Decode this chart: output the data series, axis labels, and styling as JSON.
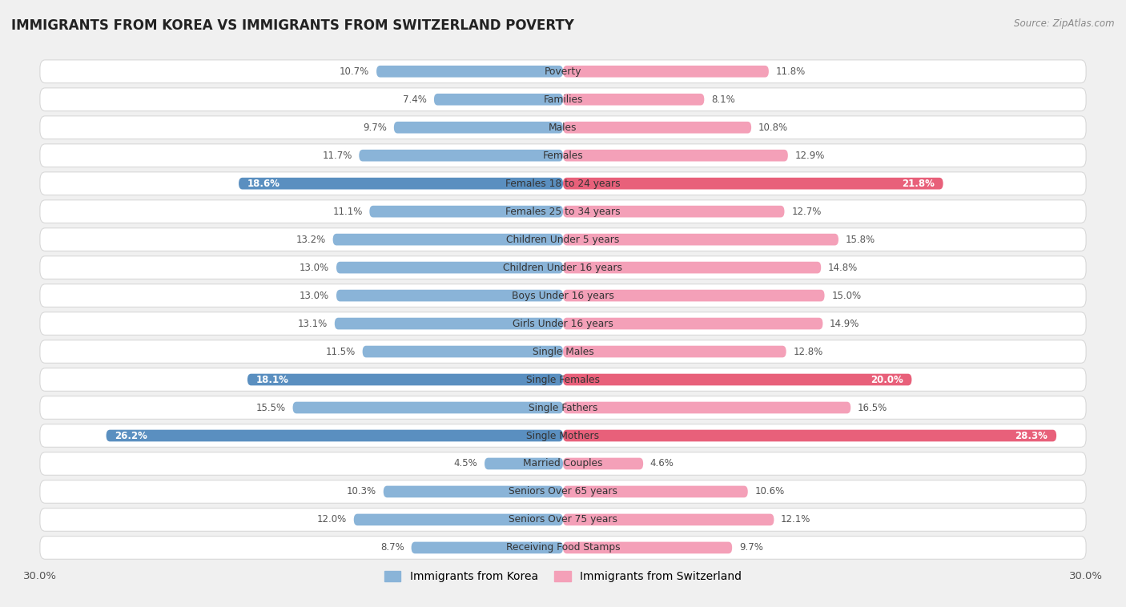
{
  "title": "IMMIGRANTS FROM KOREA VS IMMIGRANTS FROM SWITZERLAND POVERTY",
  "source": "Source: ZipAtlas.com",
  "categories": [
    "Poverty",
    "Families",
    "Males",
    "Females",
    "Females 18 to 24 years",
    "Females 25 to 34 years",
    "Children Under 5 years",
    "Children Under 16 years",
    "Boys Under 16 years",
    "Girls Under 16 years",
    "Single Males",
    "Single Females",
    "Single Fathers",
    "Single Mothers",
    "Married Couples",
    "Seniors Over 65 years",
    "Seniors Over 75 years",
    "Receiving Food Stamps"
  ],
  "korea_values": [
    10.7,
    7.4,
    9.7,
    11.7,
    18.6,
    11.1,
    13.2,
    13.0,
    13.0,
    13.1,
    11.5,
    18.1,
    15.5,
    26.2,
    4.5,
    10.3,
    12.0,
    8.7
  ],
  "switzerland_values": [
    11.8,
    8.1,
    10.8,
    12.9,
    21.8,
    12.7,
    15.8,
    14.8,
    15.0,
    14.9,
    12.8,
    20.0,
    16.5,
    28.3,
    4.6,
    10.6,
    12.1,
    9.7
  ],
  "korea_color": "#8ab4d8",
  "switzerland_color": "#f4a0b8",
  "korea_highlight_color": "#5a8fc0",
  "switzerland_highlight_color": "#e8607a",
  "highlight_rows": [
    4,
    11,
    13
  ],
  "axis_max": 30.0,
  "bar_height": 0.42,
  "background_color": "#f0f0f0",
  "row_bg_color": "#ffffff",
  "row_border_color": "#d8d8d8",
  "legend_korea": "Immigrants from Korea",
  "legend_switzerland": "Immigrants from Switzerland"
}
